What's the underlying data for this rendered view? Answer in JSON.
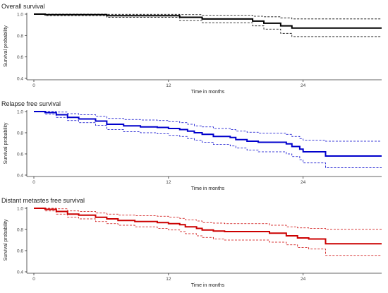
{
  "chart_data": [
    {
      "type": "line",
      "title": "Overall survival",
      "xlabel": "Time in months",
      "ylabel": "Survival probability",
      "xlim": [
        0,
        31
      ],
      "ylim": [
        0.4,
        1.0
      ],
      "xticks": [
        0,
        12,
        24
      ],
      "yticks": [
        0.4,
        0.6,
        0.8,
        1.0
      ],
      "ytick_labels": [
        "0.4",
        "0.6",
        "0.8",
        "1.0"
      ],
      "grid": false,
      "color": "#000000",
      "steps": [
        [
          0,
          1.0
        ],
        [
          1,
          0.995
        ],
        [
          6.5,
          0.985
        ],
        [
          13,
          0.97
        ],
        [
          15,
          0.955
        ],
        [
          19.5,
          0.935
        ],
        [
          20.5,
          0.915
        ],
        [
          22,
          0.89
        ],
        [
          23,
          0.87
        ],
        [
          31,
          0.87
        ]
      ],
      "upper": [
        [
          0,
          1.0
        ],
        [
          1,
          1.0
        ],
        [
          6.5,
          0.998
        ],
        [
          13,
          0.995
        ],
        [
          15,
          0.99
        ],
        [
          19.5,
          0.98
        ],
        [
          20.5,
          0.975
        ],
        [
          22,
          0.965
        ],
        [
          23,
          0.955
        ],
        [
          31,
          0.955
        ]
      ],
      "lower": [
        [
          0,
          1.0
        ],
        [
          1,
          0.985
        ],
        [
          6.5,
          0.97
        ],
        [
          13,
          0.94
        ],
        [
          15,
          0.92
        ],
        [
          19.5,
          0.89
        ],
        [
          20.5,
          0.86
        ],
        [
          22,
          0.82
        ],
        [
          23,
          0.79
        ],
        [
          31,
          0.79
        ]
      ]
    },
    {
      "type": "line",
      "title": "Relapse free survival",
      "xlabel": "Time in months",
      "ylabel": "Survival probability",
      "xlim": [
        0,
        31
      ],
      "ylim": [
        0.4,
        1.0
      ],
      "xticks": [
        0,
        12,
        24
      ],
      "yticks": [
        0.4,
        0.6,
        0.8,
        1.0
      ],
      "ytick_labels": [
        "0.4",
        "0.6",
        "0.8",
        "1.0"
      ],
      "grid": false,
      "color": "#0000cc",
      "steps": [
        [
          0,
          1.0
        ],
        [
          1,
          0.99
        ],
        [
          2,
          0.97
        ],
        [
          3,
          0.945
        ],
        [
          4,
          0.93
        ],
        [
          5.5,
          0.91
        ],
        [
          6.5,
          0.88
        ],
        [
          8,
          0.865
        ],
        [
          9.5,
          0.855
        ],
        [
          11,
          0.85
        ],
        [
          12,
          0.84
        ],
        [
          13,
          0.83
        ],
        [
          13.7,
          0.815
        ],
        [
          14.3,
          0.8
        ],
        [
          15,
          0.785
        ],
        [
          16,
          0.765
        ],
        [
          17.5,
          0.755
        ],
        [
          18,
          0.735
        ],
        [
          19,
          0.72
        ],
        [
          20,
          0.71
        ],
        [
          22.5,
          0.695
        ],
        [
          23,
          0.67
        ],
        [
          23.7,
          0.645
        ],
        [
          24,
          0.62
        ],
        [
          26,
          0.58
        ],
        [
          31,
          0.58
        ]
      ],
      "upper": [
        [
          0,
          1.0
        ],
        [
          1,
          1.0
        ],
        [
          2,
          0.995
        ],
        [
          3,
          0.98
        ],
        [
          4,
          0.97
        ],
        [
          5.5,
          0.955
        ],
        [
          6.5,
          0.935
        ],
        [
          8,
          0.925
        ],
        [
          9.5,
          0.92
        ],
        [
          11,
          0.915
        ],
        [
          12,
          0.905
        ],
        [
          13,
          0.895
        ],
        [
          13.7,
          0.88
        ],
        [
          14.3,
          0.865
        ],
        [
          15,
          0.855
        ],
        [
          16,
          0.84
        ],
        [
          17.5,
          0.83
        ],
        [
          18,
          0.815
        ],
        [
          19,
          0.805
        ],
        [
          20,
          0.795
        ],
        [
          22.5,
          0.785
        ],
        [
          23,
          0.765
        ],
        [
          23.7,
          0.745
        ],
        [
          24,
          0.73
        ],
        [
          26,
          0.72
        ],
        [
          31,
          0.72
        ]
      ],
      "lower": [
        [
          0,
          1.0
        ],
        [
          1,
          0.975
        ],
        [
          2,
          0.945
        ],
        [
          3,
          0.915
        ],
        [
          4,
          0.895
        ],
        [
          5.5,
          0.87
        ],
        [
          6.5,
          0.83
        ],
        [
          8,
          0.81
        ],
        [
          9.5,
          0.8
        ],
        [
          11,
          0.79
        ],
        [
          12,
          0.775
        ],
        [
          13,
          0.765
        ],
        [
          13.7,
          0.745
        ],
        [
          14.3,
          0.73
        ],
        [
          15,
          0.71
        ],
        [
          16,
          0.69
        ],
        [
          17.5,
          0.675
        ],
        [
          18,
          0.655
        ],
        [
          19,
          0.635
        ],
        [
          20,
          0.62
        ],
        [
          22.5,
          0.6
        ],
        [
          23,
          0.575
        ],
        [
          23.7,
          0.545
        ],
        [
          24,
          0.515
        ],
        [
          26,
          0.47
        ],
        [
          31,
          0.47
        ]
      ]
    },
    {
      "type": "line",
      "title": "Distant metastes free survival",
      "xlabel": "Time in months",
      "ylabel": "Survival probability",
      "xlim": [
        0,
        31
      ],
      "ylim": [
        0.4,
        1.0
      ],
      "xticks": [
        0,
        12,
        24
      ],
      "yticks": [
        0.4,
        0.6,
        0.8,
        1.0
      ],
      "ytick_labels": [
        "0.4",
        "0.6",
        "0.8",
        "1.0"
      ],
      "grid": false,
      "color": "#cc0000",
      "steps": [
        [
          0,
          1.0
        ],
        [
          1,
          0.99
        ],
        [
          2,
          0.97
        ],
        [
          3,
          0.945
        ],
        [
          4,
          0.935
        ],
        [
          5.5,
          0.915
        ],
        [
          6.5,
          0.9
        ],
        [
          7.5,
          0.885
        ],
        [
          9,
          0.875
        ],
        [
          11,
          0.865
        ],
        [
          12,
          0.855
        ],
        [
          13,
          0.845
        ],
        [
          13.5,
          0.825
        ],
        [
          14.5,
          0.81
        ],
        [
          15,
          0.795
        ],
        [
          16,
          0.785
        ],
        [
          17,
          0.78
        ],
        [
          21,
          0.765
        ],
        [
          22.5,
          0.74
        ],
        [
          23.5,
          0.72
        ],
        [
          24.5,
          0.71
        ],
        [
          26,
          0.665
        ],
        [
          31,
          0.665
        ]
      ],
      "upper": [
        [
          0,
          1.0
        ],
        [
          1,
          1.0
        ],
        [
          2,
          0.995
        ],
        [
          3,
          0.975
        ],
        [
          4,
          0.97
        ],
        [
          5.5,
          0.955
        ],
        [
          6.5,
          0.945
        ],
        [
          7.5,
          0.935
        ],
        [
          9,
          0.93
        ],
        [
          11,
          0.925
        ],
        [
          12,
          0.915
        ],
        [
          13,
          0.905
        ],
        [
          13.5,
          0.89
        ],
        [
          14.5,
          0.88
        ],
        [
          15,
          0.865
        ],
        [
          16,
          0.86
        ],
        [
          17,
          0.855
        ],
        [
          21,
          0.84
        ],
        [
          22.5,
          0.825
        ],
        [
          23.5,
          0.815
        ],
        [
          24.5,
          0.81
        ],
        [
          26,
          0.8
        ],
        [
          31,
          0.8
        ]
      ],
      "lower": [
        [
          0,
          1.0
        ],
        [
          1,
          0.975
        ],
        [
          2,
          0.945
        ],
        [
          3,
          0.915
        ],
        [
          4,
          0.9
        ],
        [
          5.5,
          0.875
        ],
        [
          6.5,
          0.855
        ],
        [
          7.5,
          0.84
        ],
        [
          9,
          0.825
        ],
        [
          11,
          0.81
        ],
        [
          12,
          0.795
        ],
        [
          13,
          0.78
        ],
        [
          13.5,
          0.76
        ],
        [
          14.5,
          0.74
        ],
        [
          15,
          0.725
        ],
        [
          16,
          0.71
        ],
        [
          17,
          0.7
        ],
        [
          21,
          0.68
        ],
        [
          22.5,
          0.655
        ],
        [
          23.5,
          0.63
        ],
        [
          24.5,
          0.615
        ],
        [
          26,
          0.555
        ],
        [
          31,
          0.555
        ]
      ]
    }
  ]
}
